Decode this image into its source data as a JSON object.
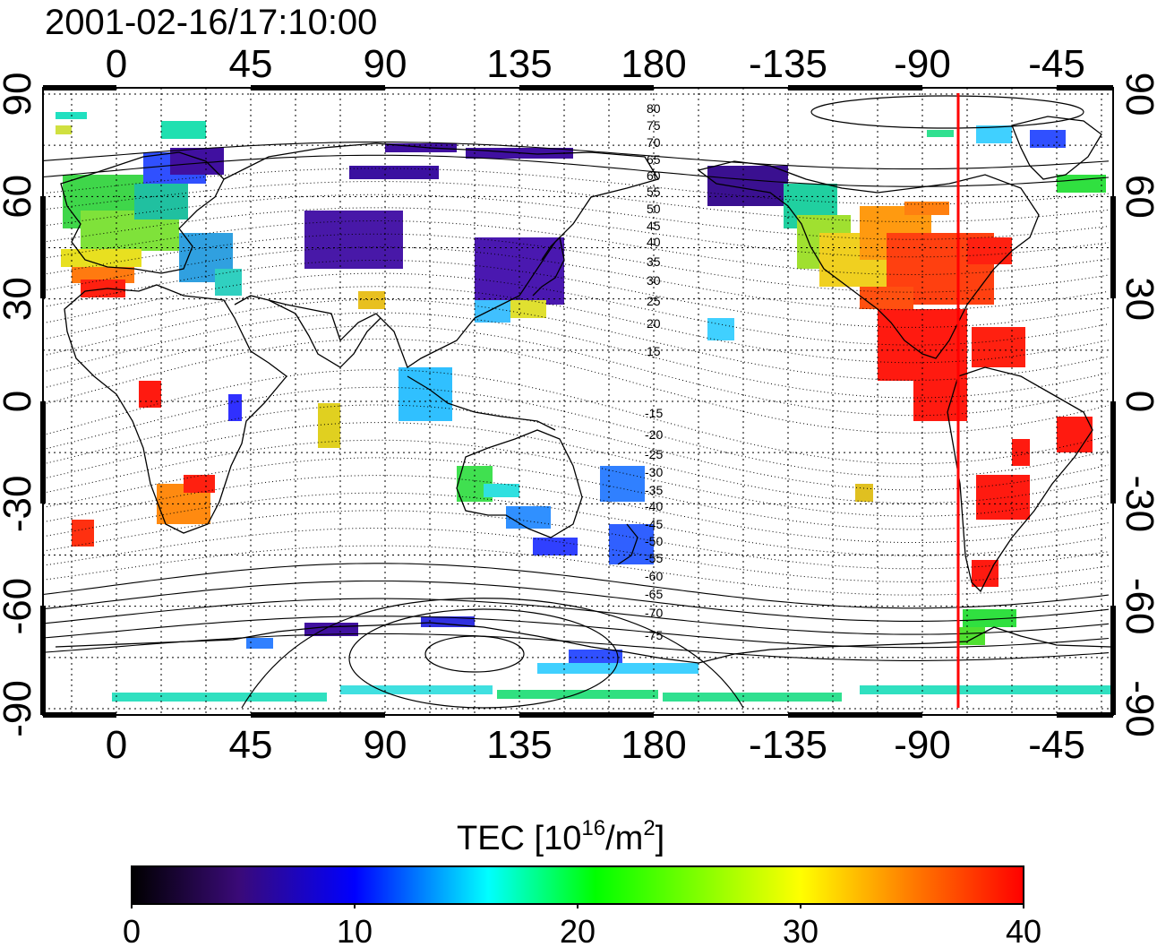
{
  "title": "2001-02-16/17:10:00",
  "map": {
    "top_ticks": [
      "0",
      "45",
      "90",
      "135",
      "180",
      "-135",
      "-90",
      "-45"
    ],
    "bottom_ticks": [
      "0",
      "45",
      "90",
      "135",
      "180",
      "-135",
      "-90",
      "-45"
    ],
    "left_ticks": [
      "90",
      "60",
      "30",
      "0",
      "-30",
      "-60",
      "-90"
    ],
    "right_ticks": [
      "90",
      "60",
      "30",
      "0",
      "-30",
      "-60",
      "-90"
    ],
    "contour_labels_north": [
      "80",
      "75",
      "70",
      "65",
      "60",
      "55",
      "50",
      "45",
      "40",
      "35",
      "30",
      "25",
      "20",
      "15"
    ],
    "contour_labels_south": [
      "-15",
      "-20",
      "-25",
      "-30",
      "-35",
      "-40",
      "-45",
      "-50",
      "-55",
      "-60",
      "-65",
      "-70",
      "-75"
    ],
    "marker_line_color": "#ff0000",
    "marker_line_longitude": -78
  },
  "colorbar": {
    "label_prefix": "TEC  [10",
    "label_sup1": "16",
    "label_mid": "/m",
    "label_sup2": "2",
    "label_suffix": "]",
    "ticks": [
      "0",
      "10",
      "20",
      "30",
      "40"
    ],
    "colors": [
      "#000000",
      "#3a0a78",
      "#0000ff",
      "#00ffff",
      "#00ff00",
      "#ffff00",
      "#ff8000",
      "#ff0000"
    ]
  }
}
